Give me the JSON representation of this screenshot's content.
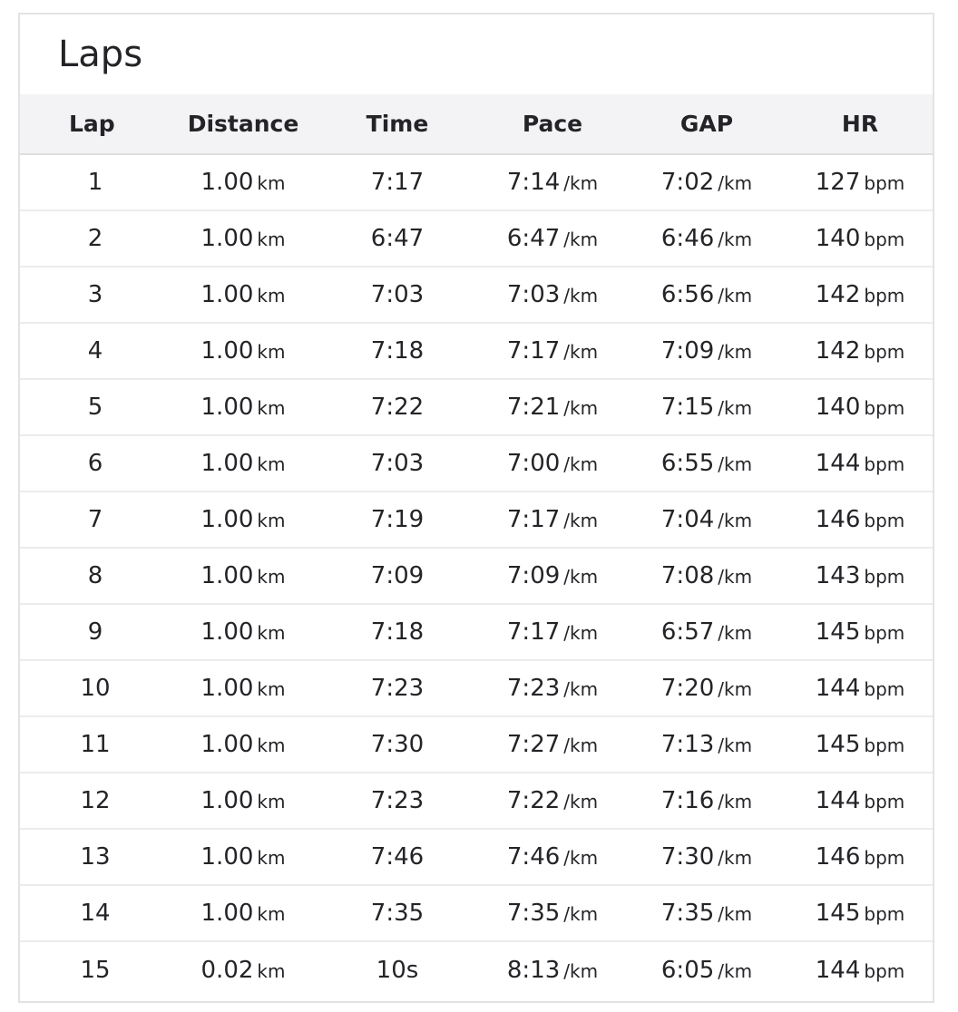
{
  "title": "Laps",
  "headers": [
    "Lap",
    "Distance",
    "Time",
    "Pace",
    "GAP",
    "HR"
  ],
  "units": {
    "distance": "km",
    "pace": "/km",
    "gap": "/km",
    "hr": "bpm"
  },
  "rows": [
    {
      "lap": "1",
      "distance": "1.00",
      "time": "7:17",
      "pace": "7:14",
      "gap": "7:02",
      "hr": "127"
    },
    {
      "lap": "2",
      "distance": "1.00",
      "time": "6:47",
      "pace": "6:47",
      "gap": "6:46",
      "hr": "140"
    },
    {
      "lap": "3",
      "distance": "1.00",
      "time": "7:03",
      "pace": "7:03",
      "gap": "6:56",
      "hr": "142"
    },
    {
      "lap": "4",
      "distance": "1.00",
      "time": "7:18",
      "pace": "7:17",
      "gap": "7:09",
      "hr": "142"
    },
    {
      "lap": "5",
      "distance": "1.00",
      "time": "7:22",
      "pace": "7:21",
      "gap": "7:15",
      "hr": "140"
    },
    {
      "lap": "6",
      "distance": "1.00",
      "time": "7:03",
      "pace": "7:00",
      "gap": "6:55",
      "hr": "144"
    },
    {
      "lap": "7",
      "distance": "1.00",
      "time": "7:19",
      "pace": "7:17",
      "gap": "7:04",
      "hr": "146"
    },
    {
      "lap": "8",
      "distance": "1.00",
      "time": "7:09",
      "pace": "7:09",
      "gap": "7:08",
      "hr": "143"
    },
    {
      "lap": "9",
      "distance": "1.00",
      "time": "7:18",
      "pace": "7:17",
      "gap": "6:57",
      "hr": "145"
    },
    {
      "lap": "10",
      "distance": "1.00",
      "time": "7:23",
      "pace": "7:23",
      "gap": "7:20",
      "hr": "144"
    },
    {
      "lap": "11",
      "distance": "1.00",
      "time": "7:30",
      "pace": "7:27",
      "gap": "7:13",
      "hr": "145"
    },
    {
      "lap": "12",
      "distance": "1.00",
      "time": "7:23",
      "pace": "7:22",
      "gap": "7:16",
      "hr": "144"
    },
    {
      "lap": "13",
      "distance": "1.00",
      "time": "7:46",
      "pace": "7:46",
      "gap": "7:30",
      "hr": "146"
    },
    {
      "lap": "14",
      "distance": "1.00",
      "time": "7:35",
      "pace": "7:35",
      "gap": "7:35",
      "hr": "145"
    },
    {
      "lap": "15",
      "distance": "0.02",
      "time": "10s",
      "pace": "8:13",
      "gap": "6:05",
      "hr": "144"
    }
  ]
}
